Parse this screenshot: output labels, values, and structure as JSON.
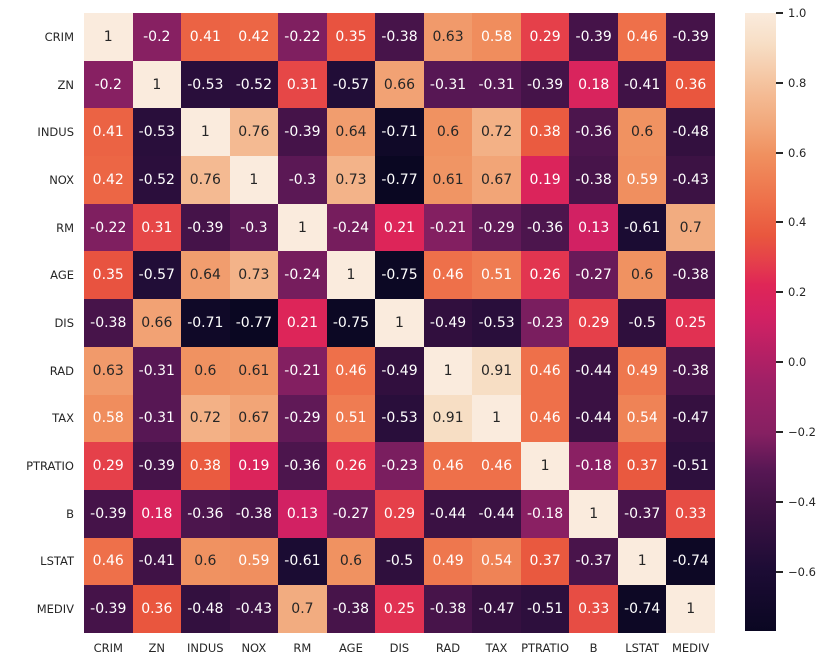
{
  "chart_data": {
    "type": "heatmap",
    "title": "",
    "xlabel": "",
    "ylabel": "",
    "categories": [
      "CRIM",
      "ZN",
      "INDUS",
      "NOX",
      "RM",
      "AGE",
      "DIS",
      "RAD",
      "TAX",
      "PTRATIO",
      "B",
      "LSTAT",
      "MEDIV"
    ],
    "matrix": [
      [
        1,
        -0.2,
        0.41,
        0.42,
        -0.22,
        0.35,
        -0.38,
        0.63,
        0.58,
        0.29,
        -0.39,
        0.46,
        -0.39
      ],
      [
        -0.2,
        1,
        -0.53,
        -0.52,
        0.31,
        -0.57,
        0.66,
        -0.31,
        -0.31,
        -0.39,
        0.18,
        -0.41,
        0.36
      ],
      [
        0.41,
        -0.53,
        1,
        0.76,
        -0.39,
        0.64,
        -0.71,
        0.6,
        0.72,
        0.38,
        -0.36,
        0.6,
        -0.48
      ],
      [
        0.42,
        -0.52,
        0.76,
        1,
        -0.3,
        0.73,
        -0.77,
        0.61,
        0.67,
        0.19,
        -0.38,
        0.59,
        -0.43
      ],
      [
        -0.22,
        0.31,
        -0.39,
        -0.3,
        1,
        -0.24,
        0.21,
        -0.21,
        -0.29,
        -0.36,
        0.13,
        -0.61,
        0.7
      ],
      [
        0.35,
        -0.57,
        0.64,
        0.73,
        -0.24,
        1,
        -0.75,
        0.46,
        0.51,
        0.26,
        -0.27,
        0.6,
        -0.38
      ],
      [
        -0.38,
        0.66,
        -0.71,
        -0.77,
        0.21,
        -0.75,
        1,
        -0.49,
        -0.53,
        -0.23,
        0.29,
        -0.5,
        0.25
      ],
      [
        0.63,
        -0.31,
        0.6,
        0.61,
        -0.21,
        0.46,
        -0.49,
        1,
        0.91,
        0.46,
        -0.44,
        0.49,
        -0.38
      ],
      [
        0.58,
        -0.31,
        0.72,
        0.67,
        -0.29,
        0.51,
        -0.53,
        0.91,
        1,
        0.46,
        -0.44,
        0.54,
        -0.47
      ],
      [
        0.29,
        -0.39,
        0.38,
        0.19,
        -0.36,
        0.26,
        -0.23,
        0.46,
        0.46,
        1,
        -0.18,
        0.37,
        -0.51
      ],
      [
        -0.39,
        0.18,
        -0.36,
        -0.38,
        0.13,
        -0.27,
        0.29,
        -0.44,
        -0.44,
        -0.18,
        1,
        -0.37,
        0.33
      ],
      [
        0.46,
        -0.41,
        0.6,
        0.59,
        -0.61,
        0.6,
        -0.5,
        0.49,
        0.54,
        0.37,
        -0.37,
        1,
        -0.74
      ],
      [
        -0.39,
        0.36,
        -0.48,
        -0.43,
        0.7,
        -0.38,
        0.25,
        -0.38,
        -0.47,
        -0.51,
        0.33,
        -0.74,
        1
      ]
    ],
    "vmin": -0.77,
    "vmax": 1.0,
    "colormap": "rocket",
    "grid": false,
    "annotations_shown": true,
    "colorbar": {
      "position": "right",
      "tick_values": [
        1.0,
        0.8,
        0.6,
        0.4,
        0.2,
        0.0,
        -0.2,
        -0.4,
        -0.6
      ],
      "tick_labels": [
        "1.0",
        "0.8",
        "0.6",
        "0.4",
        "0.2",
        "0.0",
        "−0.2",
        "−0.4",
        "−0.6"
      ]
    }
  },
  "style": {
    "background": "#ffffff",
    "tick_label_color": "#262626",
    "annot_dark_color": "#262626",
    "annot_light_color": "#ffffff",
    "colormap_stops": [
      [
        0.0,
        "#0A0722"
      ],
      [
        0.1,
        "#1D0C35"
      ],
      [
        0.2,
        "#3F1245"
      ],
      [
        0.26,
        "#571754"
      ],
      [
        0.32,
        "#862062"
      ],
      [
        0.4,
        "#9E2066"
      ],
      [
        0.51,
        "#D32163"
      ],
      [
        0.56,
        "#DF2657"
      ],
      [
        0.6,
        "#E5414A"
      ],
      [
        0.64,
        "#E9573E"
      ],
      [
        0.7,
        "#EE724B"
      ],
      [
        0.77,
        "#F0905F"
      ],
      [
        0.82,
        "#F2A87B"
      ],
      [
        0.87,
        "#F4BC95"
      ],
      [
        0.95,
        "#F7DEC5"
      ],
      [
        1.0,
        "#FAEBDD"
      ]
    ]
  }
}
